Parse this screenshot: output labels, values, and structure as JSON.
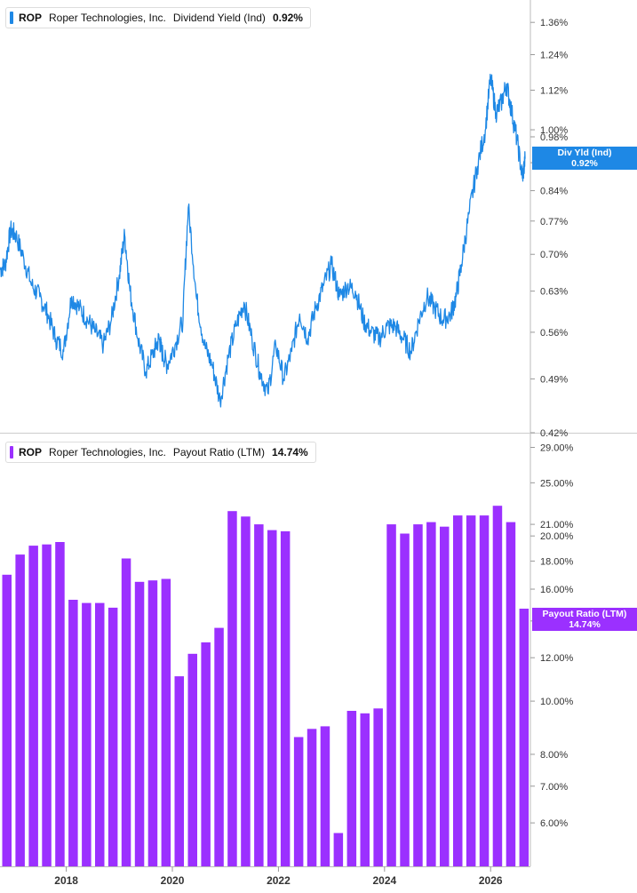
{
  "colors": {
    "yield": "#1e88e5",
    "payout": "#9b30ff",
    "axis": "#bbbbbb",
    "text": "#333333"
  },
  "legend_top": {
    "ticker": "ROP",
    "company": "Roper Technologies, Inc.",
    "metric": "Dividend Yield (Ind)",
    "value": "0.92%"
  },
  "legend_bottom": {
    "ticker": "ROP",
    "company": "Roper Technologies, Inc.",
    "metric": "Payout Ratio (LTM)",
    "value": "14.74%"
  },
  "flag_top": {
    "line1": "Div Yld (Ind)",
    "line2": "0.92%"
  },
  "flag_bottom": {
    "line1": "Payout Ratio (LTM)",
    "line2": "14.74%"
  },
  "chart_data": [
    {
      "type": "line",
      "scale": "log",
      "series": [
        {
          "name": "Dividend Yield (Ind)",
          "color": "#1e88e5"
        }
      ],
      "yticks": [
        "1.36%",
        "1.24%",
        "1.12%",
        "1.00%",
        "0.98%",
        "0.91%",
        "0.84%",
        "0.77%",
        "0.70%",
        "0.63%",
        "0.56%",
        "0.49%",
        "0.42%"
      ],
      "ytick_values": [
        1.36,
        1.24,
        1.12,
        1.0,
        0.98,
        0.91,
        0.84,
        0.77,
        0.7,
        0.63,
        0.56,
        0.49,
        0.42
      ],
      "ylim": [
        0.42,
        1.45
      ],
      "xlim": [
        2016.75,
        2026.75
      ],
      "x": [
        2016.75,
        2016.85,
        2016.95,
        2017.05,
        2017.2,
        2017.35,
        2017.5,
        2017.65,
        2017.8,
        2017.95,
        2018.1,
        2018.25,
        2018.4,
        2018.55,
        2018.7,
        2018.85,
        2019.0,
        2019.1,
        2019.2,
        2019.35,
        2019.5,
        2019.65,
        2019.75,
        2019.8,
        2019.9,
        2020.05,
        2020.2,
        2020.3,
        2020.45,
        2020.6,
        2020.75,
        2020.9,
        2021.05,
        2021.2,
        2021.35,
        2021.5,
        2021.65,
        2021.8,
        2021.95,
        2022.1,
        2022.25,
        2022.4,
        2022.55,
        2022.7,
        2022.85,
        2023.0,
        2023.15,
        2023.3,
        2023.45,
        2023.6,
        2023.75,
        2023.9,
        2024.05,
        2024.2,
        2024.35,
        2024.5,
        2024.65,
        2024.8,
        2024.95,
        2025.1,
        2025.25,
        2025.35,
        2025.45,
        2025.6,
        2025.75,
        2025.9,
        2026.0,
        2026.1,
        2026.2,
        2026.3,
        2026.4,
        2026.5,
        2026.6,
        2026.65
      ],
      "y": [
        0.67,
        0.68,
        0.75,
        0.74,
        0.69,
        0.64,
        0.62,
        0.59,
        0.55,
        0.53,
        0.62,
        0.6,
        0.58,
        0.56,
        0.54,
        0.58,
        0.66,
        0.74,
        0.63,
        0.55,
        0.5,
        0.53,
        0.55,
        0.53,
        0.51,
        0.54,
        0.58,
        0.8,
        0.62,
        0.54,
        0.51,
        0.46,
        0.52,
        0.57,
        0.61,
        0.55,
        0.5,
        0.47,
        0.54,
        0.49,
        0.53,
        0.59,
        0.55,
        0.6,
        0.64,
        0.68,
        0.62,
        0.64,
        0.63,
        0.58,
        0.56,
        0.55,
        0.57,
        0.57,
        0.55,
        0.53,
        0.58,
        0.62,
        0.6,
        0.58,
        0.59,
        0.62,
        0.68,
        0.79,
        0.9,
        1.0,
        1.16,
        1.05,
        1.08,
        1.14,
        1.05,
        0.97,
        0.87,
        0.92
      ]
    },
    {
      "type": "bar",
      "scale": "log",
      "series": [
        {
          "name": "Payout Ratio (LTM)",
          "color": "#9b30ff"
        }
      ],
      "yticks": [
        "29.00%",
        "25.00%",
        "21.00%",
        "20.00%",
        "18.00%",
        "16.00%",
        "14.00%",
        "12.00%",
        "10.00%",
        "8.00%",
        "7.00%",
        "6.00%"
      ],
      "ytick_values": [
        29,
        25,
        21,
        20,
        18,
        16,
        14,
        12,
        10,
        8,
        7,
        6
      ],
      "ylim": [
        5.0,
        30.5
      ],
      "xlim": [
        2016.75,
        2026.75
      ],
      "x": [
        2016.88,
        2017.13,
        2017.38,
        2017.63,
        2017.88,
        2018.13,
        2018.38,
        2018.63,
        2018.88,
        2019.13,
        2019.38,
        2019.63,
        2019.88,
        2020.13,
        2020.38,
        2020.63,
        2020.88,
        2021.13,
        2021.38,
        2021.63,
        2021.88,
        2022.13,
        2022.38,
        2022.63,
        2022.88,
        2023.13,
        2023.38,
        2023.63,
        2023.88,
        2024.13,
        2024.38,
        2024.63,
        2024.88,
        2025.13,
        2025.38,
        2025.63,
        2025.88,
        2026.13,
        2026.38,
        2026.63
      ],
      "values": [
        17.0,
        18.5,
        19.2,
        19.3,
        19.5,
        15.3,
        15.1,
        15.1,
        14.8,
        18.2,
        16.5,
        16.6,
        16.7,
        11.1,
        12.2,
        12.8,
        13.6,
        22.2,
        21.7,
        21.0,
        20.5,
        20.4,
        8.6,
        8.9,
        9.0,
        5.75,
        9.6,
        9.5,
        9.7,
        21.0,
        20.2,
        21.0,
        21.2,
        20.8,
        21.8,
        21.8,
        21.8,
        22.7,
        21.2,
        14.74
      ]
    }
  ],
  "x_axis": {
    "ticks": [
      "2018",
      "2020",
      "2022",
      "2024",
      "2026"
    ],
    "tick_values": [
      2018,
      2020,
      2022,
      2024,
      2026
    ]
  }
}
